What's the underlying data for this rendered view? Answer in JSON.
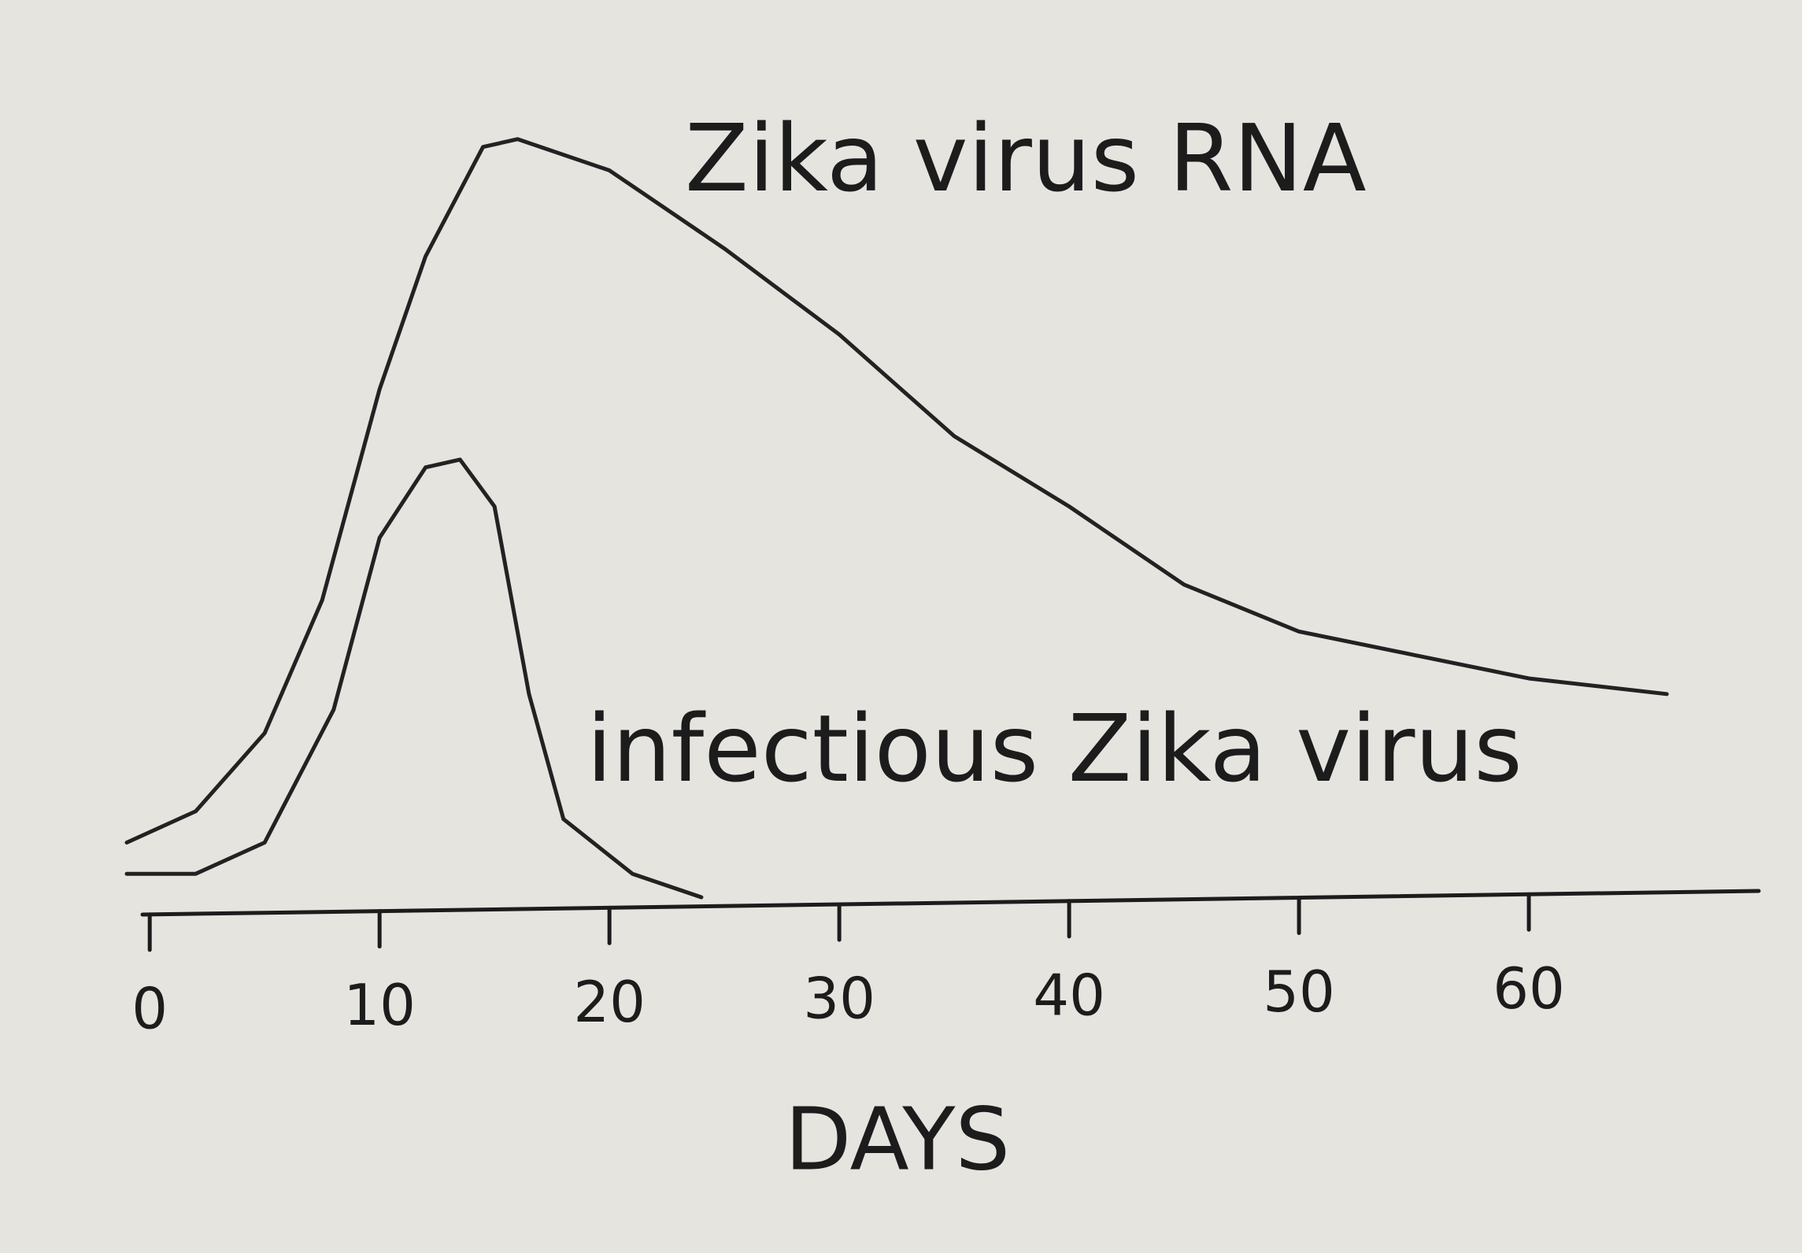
{
  "chart_data": {
    "type": "line",
    "x_label": "DAYS",
    "series": [
      {
        "name": "Zika virus RNA",
        "color": "#222222",
        "x": [
          -1,
          2,
          5,
          7.5,
          10,
          12,
          14.5,
          16,
          20,
          25,
          30,
          35,
          40,
          45,
          50,
          55,
          60,
          66
        ],
        "values": [
          7,
          11,
          21,
          38,
          65,
          82,
          96,
          97,
          93,
          83,
          72,
          59,
          50,
          40,
          34,
          31,
          28,
          26
        ]
      },
      {
        "name": "infectious Zika virus",
        "color": "#222222",
        "x": [
          -1,
          2,
          5,
          8,
          10,
          12,
          13.5,
          15,
          16.5,
          18,
          21,
          24
        ],
        "values": [
          3,
          3,
          7,
          24,
          46,
          55,
          56,
          50,
          26,
          10,
          3,
          0
        ]
      }
    ],
    "xlim": [
      -1,
      70
    ],
    "xticks": [
      0,
      10,
      20,
      30,
      40,
      50,
      60
    ],
    "ylim": [
      0,
      100
    ]
  }
}
